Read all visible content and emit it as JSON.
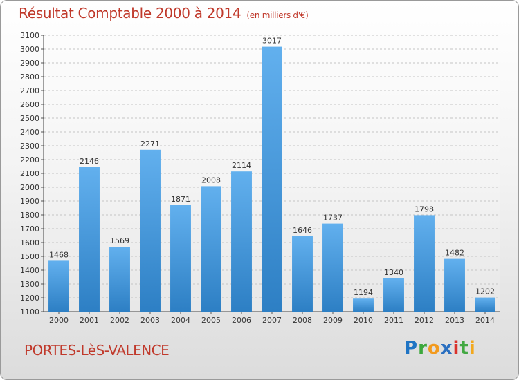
{
  "chart_data": {
    "type": "bar",
    "title": "Résultat Comptable 2000 à 2014",
    "subtitle": "(en milliers d'€)",
    "categories": [
      "2000",
      "2001",
      "2002",
      "2003",
      "2004",
      "2005",
      "2006",
      "2007",
      "2008",
      "2009",
      "2010",
      "2011",
      "2012",
      "2013",
      "2014"
    ],
    "values": [
      1468,
      2146,
      1569,
      2271,
      1871,
      2008,
      2114,
      3017,
      1646,
      1737,
      1194,
      1340,
      1798,
      1482,
      1202
    ],
    "ylim": [
      1100,
      3100
    ],
    "ytick_step": 100,
    "xlabel": "",
    "ylabel": "",
    "grid": true,
    "bar_color_top": "#62b0ee",
    "bar_color_bottom": "#2d7fc4"
  },
  "footer": {
    "location": "PORTES-LèS-VALENCE",
    "brand_letters": [
      {
        "ch": "P",
        "color": "#1f74c4"
      },
      {
        "ch": "r",
        "color": "#3da83d"
      },
      {
        "ch": "o",
        "color": "#f29a1e"
      },
      {
        "ch": "x",
        "color": "#2a6fc0"
      },
      {
        "ch": "i",
        "color": "#d9322c"
      },
      {
        "ch": "t",
        "color": "#42a842"
      },
      {
        "ch": "i",
        "color": "#f2a81e"
      }
    ]
  }
}
